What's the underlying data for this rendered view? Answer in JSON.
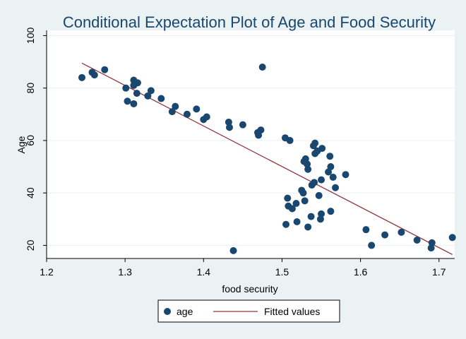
{
  "chart_data": {
    "type": "scatter",
    "title": "Conditional Expectation Plot of Age and Food Security",
    "xlabel": "food security",
    "ylabel": "Age",
    "xlim": [
      1.2,
      1.72
    ],
    "ylim": [
      15,
      102
    ],
    "xticks": [
      1.2,
      1.3,
      1.4,
      1.5,
      1.6,
      1.7
    ],
    "xtick_labels": [
      "1.2",
      "1.3",
      "1.4",
      "1.5",
      "1.6",
      "1.7"
    ],
    "yticks": [
      20,
      40,
      60,
      80,
      100
    ],
    "ytick_labels": [
      "20",
      "40",
      "60",
      "80",
      "100"
    ],
    "grid": "horizontal",
    "legend": {
      "position": "bottom",
      "entries": [
        "age",
        "Fitted values"
      ]
    },
    "series": [
      {
        "name": "age",
        "kind": "scatter",
        "color": "#1a476f",
        "points": [
          [
            1.245,
            84
          ],
          [
            1.258,
            86
          ],
          [
            1.261,
            85
          ],
          [
            1.274,
            87
          ],
          [
            1.301,
            80
          ],
          [
            1.303,
            75
          ],
          [
            1.311,
            83
          ],
          [
            1.311,
            81
          ],
          [
            1.311,
            74
          ],
          [
            1.315,
            78
          ],
          [
            1.316,
            82
          ],
          [
            1.329,
            77
          ],
          [
            1.333,
            79
          ],
          [
            1.346,
            76
          ],
          [
            1.36,
            71
          ],
          [
            1.364,
            73
          ],
          [
            1.379,
            70
          ],
          [
            1.391,
            72
          ],
          [
            1.4,
            68
          ],
          [
            1.404,
            69
          ],
          [
            1.432,
            67
          ],
          [
            1.433,
            65
          ],
          [
            1.438,
            18
          ],
          [
            1.45,
            66
          ],
          [
            1.469,
            63
          ],
          [
            1.47,
            62
          ],
          [
            1.473,
            64
          ],
          [
            1.475,
            88
          ],
          [
            1.504,
            61
          ],
          [
            1.505,
            28
          ],
          [
            1.507,
            38
          ],
          [
            1.508,
            35
          ],
          [
            1.51,
            60
          ],
          [
            1.513,
            34
          ],
          [
            1.518,
            36
          ],
          [
            1.519,
            29
          ],
          [
            1.525,
            41
          ],
          [
            1.527,
            40
          ],
          [
            1.528,
            52
          ],
          [
            1.529,
            37
          ],
          [
            1.53,
            53
          ],
          [
            1.532,
            51
          ],
          [
            1.533,
            49
          ],
          [
            1.533,
            27
          ],
          [
            1.537,
            31
          ],
          [
            1.538,
            43
          ],
          [
            1.54,
            58
          ],
          [
            1.541,
            44
          ],
          [
            1.542,
            59
          ],
          [
            1.542,
            55
          ],
          [
            1.545,
            56
          ],
          [
            1.547,
            39
          ],
          [
            1.549,
            30
          ],
          [
            1.55,
            32
          ],
          [
            1.55,
            45
          ],
          [
            1.551,
            57
          ],
          [
            1.559,
            48
          ],
          [
            1.561,
            54
          ],
          [
            1.562,
            50
          ],
          [
            1.562,
            33
          ],
          [
            1.565,
            46
          ],
          [
            1.568,
            42
          ],
          [
            1.581,
            47
          ],
          [
            1.607,
            26
          ],
          [
            1.614,
            20
          ],
          [
            1.631,
            24
          ],
          [
            1.652,
            25
          ],
          [
            1.672,
            22
          ],
          [
            1.69,
            19
          ],
          [
            1.691,
            21
          ],
          [
            1.717,
            23
          ]
        ]
      },
      {
        "name": "Fitted values",
        "kind": "line",
        "color": "#90353b",
        "points": [
          [
            1.245,
            89.5
          ],
          [
            1.717,
            16.5
          ]
        ]
      }
    ]
  }
}
